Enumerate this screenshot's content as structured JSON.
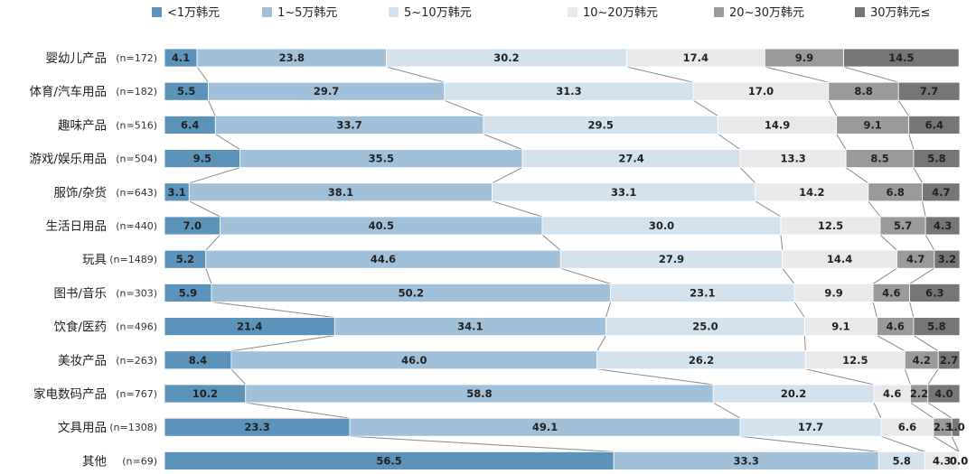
{
  "chart_data": {
    "type": "bar",
    "orientation": "horizontal",
    "stacked": "100%",
    "legend_position": "top",
    "grid": false,
    "series_connectors": true,
    "categories": [
      "婴幼儿产品",
      "体育/汽车用品",
      "趣味产品",
      "游戏/娱乐用品",
      "服饰/杂货",
      "生活日用品",
      "玩具",
      "图书/音乐",
      "饮食/医药",
      "美妆产品",
      "家电数码产品",
      "文具用品",
      "其他"
    ],
    "counts": [
      "(n=172)",
      "(n=182)",
      "(n=516)",
      "(n=504)",
      "(n=643)",
      "(n=440)",
      "(n=1489)",
      "(n=303)",
      "(n=496)",
      "(n=263)",
      "(n=767)",
      "(n=1308)",
      "(n=69)"
    ],
    "series": [
      {
        "name": "<1万韩元",
        "color": "#5b93bb",
        "values": [
          4.1,
          5.5,
          6.4,
          9.5,
          3.1,
          7.0,
          5.2,
          5.9,
          21.4,
          8.4,
          10.2,
          23.3,
          56.5
        ]
      },
      {
        "name": "1~5万韩元",
        "color": "#a0c1d9",
        "values": [
          23.8,
          29.7,
          33.7,
          35.5,
          38.1,
          40.5,
          44.6,
          50.2,
          34.1,
          46.0,
          58.8,
          49.1,
          33.3
        ]
      },
      {
        "name": "5~10万韩元",
        "color": "#d3e2ed",
        "values": [
          30.2,
          31.3,
          29.5,
          27.4,
          33.1,
          30.0,
          27.9,
          23.1,
          25.0,
          26.2,
          20.2,
          17.7,
          5.8
        ]
      },
      {
        "name": "10~20万韩元",
        "color": "#e9e9eb",
        "values": [
          17.4,
          17.0,
          14.9,
          13.3,
          14.2,
          12.5,
          14.4,
          9.9,
          9.1,
          12.5,
          4.6,
          6.6,
          4.3
        ]
      },
      {
        "name": "20~30万韩元",
        "color": "#9a9a9c",
        "values": [
          9.9,
          8.8,
          9.1,
          8.5,
          6.8,
          5.7,
          4.7,
          4.6,
          4.6,
          4.2,
          2.2,
          2.3,
          0.0
        ]
      },
      {
        "name": "30万韩元≤",
        "color": "#767678",
        "values": [
          14.5,
          7.7,
          6.4,
          5.8,
          4.7,
          4.3,
          3.2,
          6.3,
          5.8,
          2.7,
          4.0,
          1.0,
          0.0
        ]
      }
    ],
    "xlim": [
      0,
      100
    ]
  }
}
